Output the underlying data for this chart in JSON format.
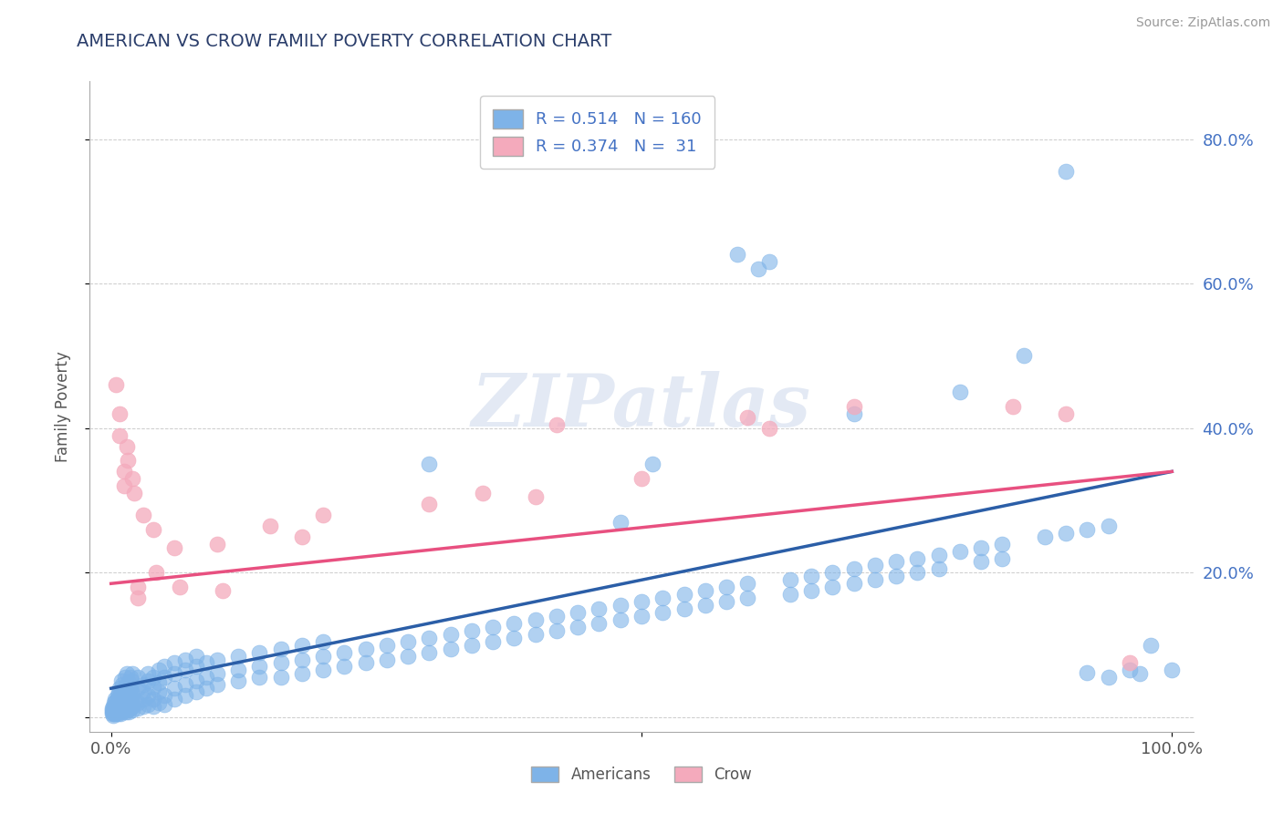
{
  "title": "AMERICAN VS CROW FAMILY POVERTY CORRELATION CHART",
  "source": "Source: ZipAtlas.com",
  "ylabel": "Family Poverty",
  "xlim": [
    -0.02,
    1.02
  ],
  "ylim": [
    -0.02,
    0.88
  ],
  "background_color": "#ffffff",
  "watermark": "ZIPatlas",
  "american_color": "#7EB3E8",
  "crow_color": "#F4AABC",
  "american_line_color": "#2B5EA7",
  "crow_line_color": "#E85080",
  "american_line": [
    0.0,
    0.04,
    1.0,
    0.34
  ],
  "crow_line": [
    0.0,
    0.185,
    1.0,
    0.34
  ],
  "americans_scatter": [
    [
      0.001,
      0.005
    ],
    [
      0.001,
      0.01
    ],
    [
      0.001,
      0.008
    ],
    [
      0.001,
      0.012
    ],
    [
      0.002,
      0.006
    ],
    [
      0.002,
      0.015
    ],
    [
      0.002,
      0.003
    ],
    [
      0.002,
      0.008
    ],
    [
      0.003,
      0.01
    ],
    [
      0.003,
      0.005
    ],
    [
      0.003,
      0.012
    ],
    [
      0.003,
      0.02
    ],
    [
      0.004,
      0.008
    ],
    [
      0.004,
      0.015
    ],
    [
      0.004,
      0.025
    ],
    [
      0.004,
      0.005
    ],
    [
      0.005,
      0.01
    ],
    [
      0.005,
      0.018
    ],
    [
      0.005,
      0.008
    ],
    [
      0.005,
      0.022
    ],
    [
      0.006,
      0.012
    ],
    [
      0.006,
      0.025
    ],
    [
      0.006,
      0.005
    ],
    [
      0.006,
      0.03
    ],
    [
      0.007,
      0.015
    ],
    [
      0.007,
      0.008
    ],
    [
      0.007,
      0.02
    ],
    [
      0.007,
      0.035
    ],
    [
      0.008,
      0.01
    ],
    [
      0.008,
      0.025
    ],
    [
      0.008,
      0.04
    ],
    [
      0.008,
      0.018
    ],
    [
      0.009,
      0.012
    ],
    [
      0.009,
      0.03
    ],
    [
      0.009,
      0.005
    ],
    [
      0.009,
      0.022
    ],
    [
      0.01,
      0.015
    ],
    [
      0.01,
      0.035
    ],
    [
      0.01,
      0.025
    ],
    [
      0.01,
      0.05
    ],
    [
      0.011,
      0.008
    ],
    [
      0.011,
      0.02
    ],
    [
      0.011,
      0.045
    ],
    [
      0.011,
      0.03
    ],
    [
      0.012,
      0.01
    ],
    [
      0.012,
      0.025
    ],
    [
      0.012,
      0.015
    ],
    [
      0.012,
      0.04
    ],
    [
      0.013,
      0.018
    ],
    [
      0.013,
      0.035
    ],
    [
      0.013,
      0.055
    ],
    [
      0.013,
      0.012
    ],
    [
      0.014,
      0.022
    ],
    [
      0.014,
      0.04
    ],
    [
      0.014,
      0.008
    ],
    [
      0.014,
      0.028
    ],
    [
      0.015,
      0.015
    ],
    [
      0.015,
      0.03
    ],
    [
      0.015,
      0.045
    ],
    [
      0.015,
      0.06
    ],
    [
      0.016,
      0.02
    ],
    [
      0.016,
      0.038
    ],
    [
      0.016,
      0.01
    ],
    [
      0.016,
      0.025
    ],
    [
      0.017,
      0.015
    ],
    [
      0.017,
      0.032
    ],
    [
      0.017,
      0.048
    ],
    [
      0.017,
      0.008
    ],
    [
      0.018,
      0.022
    ],
    [
      0.018,
      0.04
    ],
    [
      0.018,
      0.055
    ],
    [
      0.018,
      0.012
    ],
    [
      0.019,
      0.018
    ],
    [
      0.019,
      0.035
    ],
    [
      0.019,
      0.025
    ],
    [
      0.019,
      0.05
    ],
    [
      0.02,
      0.015
    ],
    [
      0.02,
      0.03
    ],
    [
      0.02,
      0.06
    ],
    [
      0.02,
      0.01
    ],
    [
      0.025,
      0.02
    ],
    [
      0.025,
      0.04
    ],
    [
      0.025,
      0.055
    ],
    [
      0.025,
      0.012
    ],
    [
      0.03,
      0.025
    ],
    [
      0.03,
      0.045
    ],
    [
      0.03,
      0.015
    ],
    [
      0.03,
      0.035
    ],
    [
      0.035,
      0.03
    ],
    [
      0.035,
      0.05
    ],
    [
      0.035,
      0.018
    ],
    [
      0.035,
      0.06
    ],
    [
      0.04,
      0.025
    ],
    [
      0.04,
      0.042
    ],
    [
      0.04,
      0.015
    ],
    [
      0.04,
      0.055
    ],
    [
      0.045,
      0.035
    ],
    [
      0.045,
      0.048
    ],
    [
      0.045,
      0.02
    ],
    [
      0.045,
      0.065
    ],
    [
      0.05,
      0.03
    ],
    [
      0.05,
      0.055
    ],
    [
      0.05,
      0.018
    ],
    [
      0.05,
      0.07
    ],
    [
      0.06,
      0.04
    ],
    [
      0.06,
      0.06
    ],
    [
      0.06,
      0.025
    ],
    [
      0.06,
      0.075
    ],
    [
      0.07,
      0.045
    ],
    [
      0.07,
      0.065
    ],
    [
      0.07,
      0.03
    ],
    [
      0.07,
      0.08
    ],
    [
      0.08,
      0.05
    ],
    [
      0.08,
      0.07
    ],
    [
      0.08,
      0.035
    ],
    [
      0.08,
      0.085
    ],
    [
      0.09,
      0.055
    ],
    [
      0.09,
      0.075
    ],
    [
      0.09,
      0.04
    ],
    [
      0.1,
      0.06
    ],
    [
      0.1,
      0.08
    ],
    [
      0.1,
      0.045
    ],
    [
      0.12,
      0.065
    ],
    [
      0.12,
      0.085
    ],
    [
      0.12,
      0.05
    ],
    [
      0.14,
      0.07
    ],
    [
      0.14,
      0.09
    ],
    [
      0.14,
      0.055
    ],
    [
      0.16,
      0.075
    ],
    [
      0.16,
      0.055
    ],
    [
      0.16,
      0.095
    ],
    [
      0.18,
      0.08
    ],
    [
      0.18,
      0.06
    ],
    [
      0.18,
      0.1
    ],
    [
      0.2,
      0.085
    ],
    [
      0.2,
      0.065
    ],
    [
      0.2,
      0.105
    ],
    [
      0.22,
      0.09
    ],
    [
      0.22,
      0.07
    ],
    [
      0.24,
      0.095
    ],
    [
      0.24,
      0.075
    ],
    [
      0.26,
      0.1
    ],
    [
      0.26,
      0.08
    ],
    [
      0.28,
      0.105
    ],
    [
      0.28,
      0.085
    ],
    [
      0.3,
      0.11
    ],
    [
      0.3,
      0.09
    ],
    [
      0.3,
      0.35
    ],
    [
      0.32,
      0.115
    ],
    [
      0.32,
      0.095
    ],
    [
      0.34,
      0.12
    ],
    [
      0.34,
      0.1
    ],
    [
      0.36,
      0.125
    ],
    [
      0.36,
      0.105
    ],
    [
      0.38,
      0.13
    ],
    [
      0.38,
      0.11
    ],
    [
      0.4,
      0.135
    ],
    [
      0.4,
      0.115
    ],
    [
      0.42,
      0.14
    ],
    [
      0.42,
      0.12
    ],
    [
      0.44,
      0.145
    ],
    [
      0.44,
      0.125
    ],
    [
      0.46,
      0.15
    ],
    [
      0.46,
      0.13
    ],
    [
      0.48,
      0.155
    ],
    [
      0.48,
      0.135
    ],
    [
      0.48,
      0.27
    ],
    [
      0.5,
      0.16
    ],
    [
      0.5,
      0.14
    ],
    [
      0.51,
      0.35
    ],
    [
      0.52,
      0.165
    ],
    [
      0.52,
      0.145
    ],
    [
      0.54,
      0.17
    ],
    [
      0.54,
      0.15
    ],
    [
      0.56,
      0.175
    ],
    [
      0.56,
      0.155
    ],
    [
      0.58,
      0.18
    ],
    [
      0.58,
      0.16
    ],
    [
      0.59,
      0.64
    ],
    [
      0.6,
      0.185
    ],
    [
      0.6,
      0.165
    ],
    [
      0.61,
      0.62
    ],
    [
      0.62,
      0.63
    ],
    [
      0.64,
      0.19
    ],
    [
      0.64,
      0.17
    ],
    [
      0.66,
      0.195
    ],
    [
      0.66,
      0.175
    ],
    [
      0.68,
      0.2
    ],
    [
      0.68,
      0.18
    ],
    [
      0.7,
      0.205
    ],
    [
      0.7,
      0.185
    ],
    [
      0.7,
      0.42
    ],
    [
      0.72,
      0.21
    ],
    [
      0.72,
      0.19
    ],
    [
      0.74,
      0.215
    ],
    [
      0.74,
      0.195
    ],
    [
      0.76,
      0.22
    ],
    [
      0.76,
      0.2
    ],
    [
      0.78,
      0.225
    ],
    [
      0.78,
      0.205
    ],
    [
      0.8,
      0.23
    ],
    [
      0.8,
      0.45
    ],
    [
      0.82,
      0.235
    ],
    [
      0.82,
      0.215
    ],
    [
      0.84,
      0.24
    ],
    [
      0.84,
      0.22
    ],
    [
      0.86,
      0.5
    ],
    [
      0.88,
      0.25
    ],
    [
      0.9,
      0.755
    ],
    [
      0.9,
      0.255
    ],
    [
      0.92,
      0.26
    ],
    [
      0.92,
      0.062
    ],
    [
      0.94,
      0.265
    ],
    [
      0.94,
      0.055
    ],
    [
      0.96,
      0.065
    ],
    [
      0.97,
      0.06
    ],
    [
      0.98,
      0.1
    ],
    [
      1.0,
      0.065
    ]
  ],
  "crow_scatter": [
    [
      0.005,
      0.46
    ],
    [
      0.008,
      0.42
    ],
    [
      0.008,
      0.39
    ],
    [
      0.012,
      0.34
    ],
    [
      0.012,
      0.32
    ],
    [
      0.015,
      0.375
    ],
    [
      0.016,
      0.355
    ],
    [
      0.02,
      0.33
    ],
    [
      0.022,
      0.31
    ],
    [
      0.025,
      0.18
    ],
    [
      0.025,
      0.165
    ],
    [
      0.03,
      0.28
    ],
    [
      0.04,
      0.26
    ],
    [
      0.042,
      0.2
    ],
    [
      0.06,
      0.235
    ],
    [
      0.065,
      0.18
    ],
    [
      0.1,
      0.24
    ],
    [
      0.105,
      0.175
    ],
    [
      0.15,
      0.265
    ],
    [
      0.18,
      0.25
    ],
    [
      0.2,
      0.28
    ],
    [
      0.3,
      0.295
    ],
    [
      0.35,
      0.31
    ],
    [
      0.4,
      0.305
    ],
    [
      0.42,
      0.405
    ],
    [
      0.5,
      0.33
    ],
    [
      0.6,
      0.415
    ],
    [
      0.62,
      0.4
    ],
    [
      0.7,
      0.43
    ],
    [
      0.85,
      0.43
    ],
    [
      0.9,
      0.42
    ],
    [
      0.96,
      0.075
    ]
  ]
}
